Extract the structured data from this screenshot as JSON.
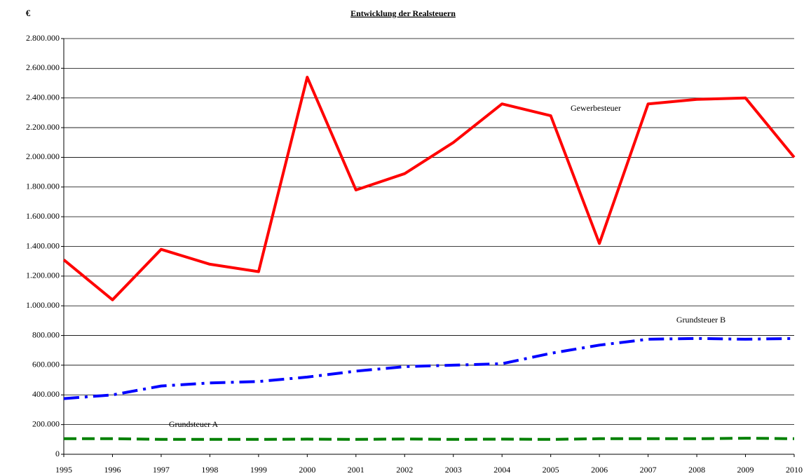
{
  "chart_data": {
    "type": "line",
    "title": "Entwicklung der Realsteuern",
    "y_axis_label": "€",
    "categories": [
      "1995",
      "1996",
      "1997",
      "1998",
      "1999",
      "2000",
      "2001",
      "2002",
      "2003",
      "2004",
      "2005",
      "2006",
      "2007",
      "2008",
      "2009",
      "2010"
    ],
    "series": [
      {
        "name": "Gewerbesteuer",
        "color": "#ff0000",
        "dash": "solid",
        "values": [
          1310000,
          1040000,
          1380000,
          1280000,
          1230000,
          2540000,
          1780000,
          1890000,
          2100000,
          2360000,
          2280000,
          1420000,
          2360000,
          2390000,
          2400000,
          2000000
        ]
      },
      {
        "name": "Grundsteuer B",
        "color": "#0000ff",
        "dash": "dashdot",
        "values": [
          375000,
          400000,
          460000,
          480000,
          490000,
          520000,
          560000,
          590000,
          600000,
          610000,
          680000,
          735000,
          775000,
          780000,
          775000,
          780000
        ]
      },
      {
        "name": "Grundsteuer A",
        "color": "#008000",
        "dash": "dash",
        "values": [
          105000,
          105000,
          100000,
          100000,
          100000,
          102000,
          100000,
          103000,
          100000,
          102000,
          100000,
          105000,
          105000,
          105000,
          108000,
          105000
        ]
      }
    ],
    "ylim": [
      0,
      2800000
    ],
    "yticks": [
      0,
      {
        "value": 200000,
        "label": "200.000"
      },
      {
        "value": 400000,
        "label": "400.000"
      },
      {
        "value": 600000,
        "label": "600.000"
      },
      {
        "value": 800000,
        "label": "800.000"
      },
      {
        "value": 1000000,
        "label": "1.000.000"
      },
      {
        "value": 1200000,
        "label": "1.200.000"
      },
      {
        "value": 1400000,
        "label": "1.400.000"
      },
      {
        "value": 1600000,
        "label": "1.600.000"
      },
      {
        "value": 1800000,
        "label": "1.800.000"
      },
      {
        "value": 2000000,
        "label": "2.000.000"
      },
      {
        "value": 2200000,
        "label": "2.200.000"
      },
      {
        "value": 2400000,
        "label": "2.400.000"
      },
      {
        "value": 2600000,
        "label": "2.600.000"
      },
      {
        "value": 2800000,
        "label": "2.800.000"
      }
    ],
    "grid": true
  }
}
